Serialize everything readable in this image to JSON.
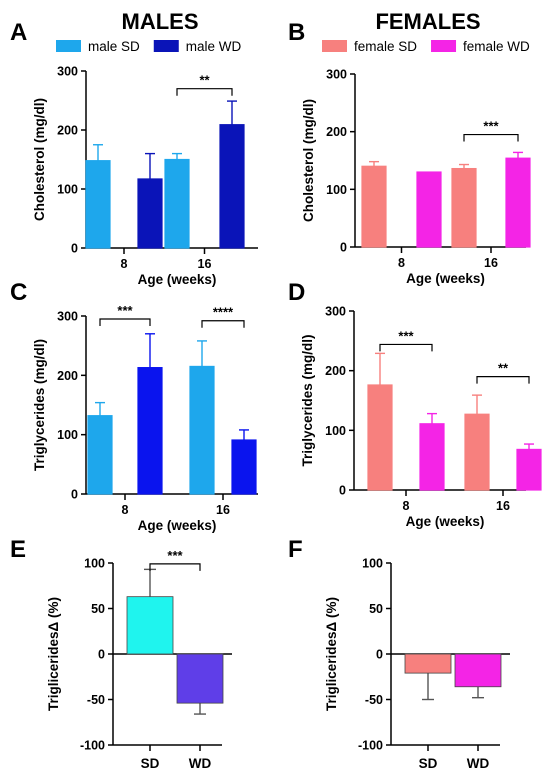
{
  "headings": {
    "males": "MALES",
    "females": "FEMALES"
  },
  "chart_data": [
    {
      "panel": "A",
      "type": "bar",
      "xlabel": "Age (weeks)",
      "ylabel": "Cholesterol (mg/dl)",
      "ylim": [
        0,
        300
      ],
      "yticks": [
        "0",
        "100",
        "200",
        "300"
      ],
      "categories": [
        "8",
        "16"
      ],
      "series": [
        {
          "name": "male SD",
          "color": "#1ea7ec",
          "values": [
            148,
            150
          ],
          "errors": [
            27,
            10
          ]
        },
        {
          "name": "male WD",
          "color": "#0a14b8",
          "values": [
            117,
            209
          ],
          "errors": [
            43,
            40
          ]
        }
      ],
      "significance": [
        {
          "category": "16",
          "label": "**"
        }
      ],
      "legend_position": "top"
    },
    {
      "panel": "B",
      "type": "bar",
      "xlabel": "Age (weeks)",
      "ylabel": "Cholesterol (mg/dl)",
      "ylim": [
        0,
        300
      ],
      "yticks": [
        "0",
        "100",
        "200",
        "300"
      ],
      "categories": [
        "8",
        "16"
      ],
      "series": [
        {
          "name": "female SD",
          "color": "#f7807e",
          "values": [
            140,
            136
          ],
          "errors": [
            8,
            7
          ]
        },
        {
          "name": "female WD",
          "color": "#f424e6",
          "values": [
            130,
            154
          ],
          "errors": [
            0,
            10
          ]
        }
      ],
      "significance": [
        {
          "category": "16",
          "label": "***"
        }
      ],
      "legend_position": "top"
    },
    {
      "panel": "C",
      "type": "bar",
      "xlabel": "Age (weeks)",
      "ylabel": "Triglycerides (mg/dl)",
      "ylim": [
        0,
        300
      ],
      "yticks": [
        "0",
        "100",
        "200",
        "300"
      ],
      "categories": [
        "8",
        "16"
      ],
      "series": [
        {
          "name": "male SD",
          "color": "#1ea7ec",
          "values": [
            132,
            215
          ],
          "errors": [
            22,
            43
          ]
        },
        {
          "name": "male WD",
          "color": "#0a14ee",
          "values": [
            213,
            91
          ],
          "errors": [
            57,
            17
          ]
        }
      ],
      "significance": [
        {
          "category": "8",
          "label": "***"
        },
        {
          "category": "16",
          "label": "****"
        }
      ]
    },
    {
      "panel": "D",
      "type": "bar",
      "xlabel": "Age (weeks)",
      "ylabel": "Triglycerides (mg/dl)",
      "ylim": [
        0,
        300
      ],
      "yticks": [
        "0",
        "100",
        "200",
        "300"
      ],
      "categories": [
        "8",
        "16"
      ],
      "series": [
        {
          "name": "female SD",
          "color": "#f7807e",
          "values": [
            176,
            127
          ],
          "errors": [
            53,
            32
          ]
        },
        {
          "name": "female WD",
          "color": "#f424e6",
          "values": [
            111,
            68
          ],
          "errors": [
            17,
            9
          ]
        }
      ],
      "significance": [
        {
          "category": "8",
          "label": "***"
        },
        {
          "category": "16",
          "label": "**"
        }
      ]
    },
    {
      "panel": "E",
      "type": "bar",
      "xlabel": "",
      "ylabel": "TrigliceridesΔ (%)",
      "ylim": [
        -100,
        100
      ],
      "yticks": [
        "100",
        "50",
        "0",
        "-50",
        "-100"
      ],
      "categories": [
        "SD",
        "WD"
      ],
      "values": [
        63,
        -54
      ],
      "errors": [
        30,
        12
      ],
      "colors": [
        "#1ff4ee",
        "#5f3ee8"
      ],
      "significance": [
        {
          "label": "***"
        }
      ]
    },
    {
      "panel": "F",
      "type": "bar",
      "xlabel": "",
      "ylabel": "TrigliceridesΔ (%)",
      "ylim": [
        -100,
        100
      ],
      "yticks": [
        "100",
        "50",
        "0",
        "-50",
        "-100"
      ],
      "categories": [
        "SD",
        "WD"
      ],
      "values": [
        -21,
        -36
      ],
      "errors": [
        29,
        12
      ],
      "colors": [
        "#f7807e",
        "#f424e6"
      ]
    }
  ]
}
